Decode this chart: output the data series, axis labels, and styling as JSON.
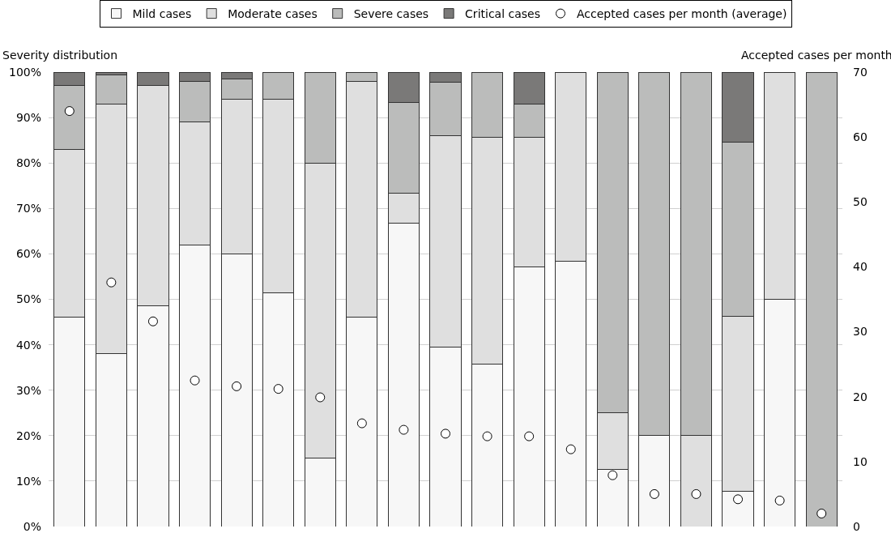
{
  "chart_data": {
    "type": "bar",
    "stacked": true,
    "ylabel": "Severity distribution",
    "y2label": "Accepted cases per month",
    "categories": [
      null,
      null,
      null,
      null,
      null,
      null,
      null,
      null,
      null,
      null,
      null,
      null,
      null,
      null,
      null,
      null,
      null,
      null,
      null
    ],
    "series": [
      {
        "name": "Mild cases",
        "color": "#f7f7f7",
        "values": [
          46,
          38,
          48.5,
          62,
          60,
          51.5,
          15,
          46,
          66.7,
          39.5,
          35.7,
          57.1,
          58.3,
          12.5,
          20,
          null,
          7.7,
          50,
          null
        ]
      },
      {
        "name": "Moderate cases",
        "color": "#dfdfdf",
        "values": [
          37,
          55,
          48.5,
          27,
          34,
          42.5,
          65,
          52,
          6.6,
          46.5,
          50,
          28.6,
          41.7,
          12.5,
          null,
          20,
          38.5,
          50,
          null
        ]
      },
      {
        "name": "Severe cases",
        "color": "#bbbcbb",
        "values": [
          14,
          6.3,
          null,
          9,
          4.5,
          6,
          20,
          2,
          20,
          11.7,
          14.3,
          7.2,
          null,
          75,
          80,
          80,
          38.4,
          null,
          100
        ]
      },
      {
        "name": "Critical cases",
        "color": "#7a7978",
        "values": [
          3,
          0.7,
          3,
          2,
          1.5,
          null,
          null,
          null,
          6.7,
          2.3,
          null,
          7.1,
          null,
          null,
          null,
          null,
          15.4,
          null,
          null
        ]
      },
      {
        "name": "Accepted cases per month (average)",
        "type": "scatter",
        "axis": "y2",
        "marker": "circle",
        "color": "#ffffff",
        "values": [
          64,
          37.6,
          31.6,
          22.5,
          21.6,
          21.2,
          19.9,
          15.9,
          14.9,
          14.3,
          13.9,
          13.9,
          11.9,
          7.9,
          5,
          5,
          4.2,
          4,
          2
        ]
      }
    ],
    "ylim": [
      0,
      100
    ],
    "yticks": [
      {
        "value": 0,
        "label": "0%"
      },
      {
        "value": 10,
        "label": "10%"
      },
      {
        "value": 20,
        "label": "20%"
      },
      {
        "value": 30,
        "label": "30%"
      },
      {
        "value": 40,
        "label": "40%"
      },
      {
        "value": 50,
        "label": "50%"
      },
      {
        "value": 60,
        "label": "60%"
      },
      {
        "value": 70,
        "label": "70%"
      },
      {
        "value": 80,
        "label": "80%"
      },
      {
        "value": 90,
        "label": "90%"
      },
      {
        "value": 100,
        "label": "100%"
      }
    ],
    "y2lim": [
      0,
      70
    ],
    "y2ticks": [
      0,
      10,
      20,
      30,
      40,
      50,
      60,
      70
    ],
    "grid": "y",
    "legend": "top",
    "tick_labels": "y"
  }
}
